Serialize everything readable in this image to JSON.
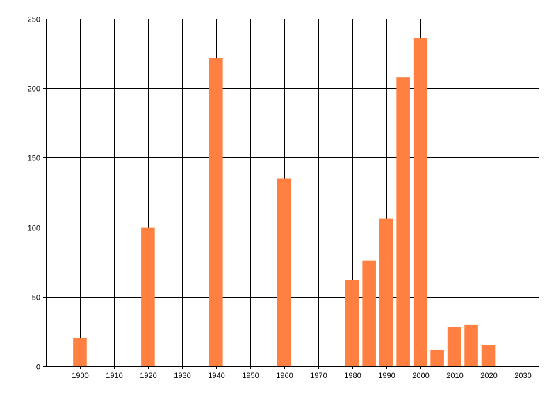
{
  "chart_data": {
    "type": "bar",
    "x": [
      1900,
      1920,
      1940,
      1960,
      1980,
      1985,
      1990,
      1995,
      2000,
      2005,
      2010,
      2015,
      2020
    ],
    "values": [
      20,
      100,
      222,
      135,
      62,
      76,
      106,
      208,
      236,
      12,
      28,
      30,
      15
    ],
    "title": "",
    "xlabel": "",
    "ylabel": "",
    "xlim": [
      1890,
      2035
    ],
    "ylim": [
      0,
      250
    ],
    "x_ticks": [
      "1900",
      "1910",
      "1920",
      "1930",
      "1940",
      "1950",
      "1960",
      "1970",
      "1980",
      "1990",
      "2000",
      "2010",
      "2020",
      "2030"
    ],
    "y_ticks": [
      "0",
      "50",
      "100",
      "150",
      "200",
      "250"
    ],
    "bar_color": "#FF8040",
    "grid": true,
    "legend": "none"
  }
}
